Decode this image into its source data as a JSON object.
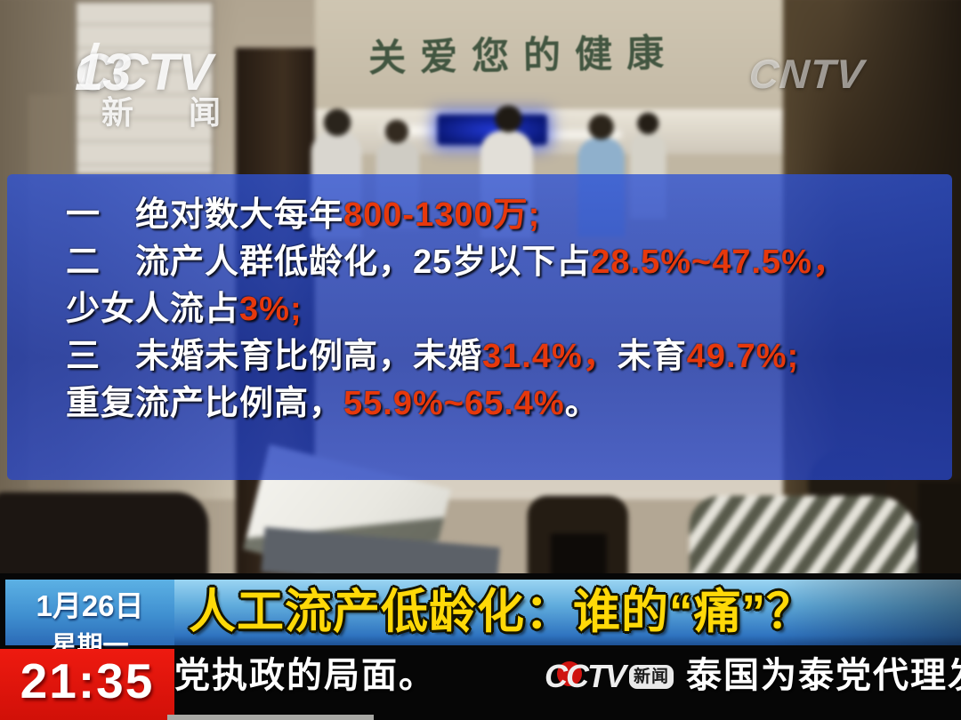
{
  "channel": {
    "logo_main": "CCTV",
    "logo_number": "13",
    "logo_sub": "新 闻",
    "watermark": "CNTV"
  },
  "scene": {
    "wall_sign": "关爱您的健康"
  },
  "overlay": {
    "lines": [
      {
        "segments": [
          {
            "t": "一　绝对数大每年"
          },
          {
            "t": "800-1300万;"
          }
        ]
      },
      {
        "segments": [
          {
            "t": "二　流产人群低龄化，25岁以下占"
          },
          {
            "t": "28.5%~47.5%，"
          }
        ]
      },
      {
        "segments": [
          {
            "t": "少女人流占"
          },
          {
            "t": "3%;"
          }
        ]
      },
      {
        "segments": [
          {
            "t": "三　未婚未育比例高，未婚"
          },
          {
            "t": "31.4%，"
          },
          {
            "t": "未育"
          },
          {
            "t": "49.7%;"
          }
        ]
      },
      {
        "segments": [
          {
            "t": "重复流产比例高，"
          },
          {
            "t": "55.9%~65.4%"
          },
          {
            "t": "。"
          }
        ]
      }
    ]
  },
  "lower_third": {
    "date": "1月26日",
    "weekday": "星期一",
    "time": "21:35",
    "headline": "人工流产低龄化：谁的“痛”？"
  },
  "ticker": {
    "text_before": "党执政的局面。",
    "logo_main": "CCTV",
    "logo_badge": "新闻",
    "text_after": "泰国为泰党代理发"
  },
  "colors": {
    "overlay_blue": "#2a4fc4",
    "stat_red": "#e6380c",
    "headline_yellow": "#ffd908",
    "banner_blue": "#5fabdc",
    "date_blue": "#3f8fd0",
    "time_red": "#e41410",
    "ticker_bg": "#060606"
  }
}
